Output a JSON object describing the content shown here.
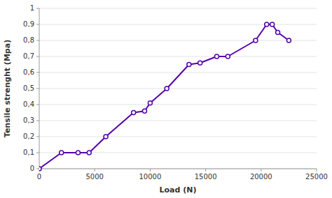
{
  "chart_data": {
    "type": "line",
    "x": [
      0,
      2000,
      3500,
      4500,
      6000,
      8500,
      9500,
      10000,
      11500,
      13500,
      14500,
      16000,
      17000,
      19500,
      20500,
      21000,
      21500,
      22500
    ],
    "values": [
      0,
      0.1,
      0.1,
      0.1,
      0.2,
      0.35,
      0.36,
      0.41,
      0.5,
      0.65,
      0.66,
      0.7,
      0.7,
      0.8,
      0.9,
      0.9,
      0.85,
      0.8
    ],
    "color": "#5500aa",
    "marker": "circle",
    "xlabel": "Load (N)",
    "ylabel": "Tensile strenght (Mpa)",
    "xlim": [
      0,
      25000
    ],
    "ylim": [
      0,
      1
    ],
    "xticks": [
      0,
      5000,
      10000,
      15000,
      20000,
      25000
    ],
    "yticks": [
      0,
      {
        "value": 0.1,
        "label": "0,1"
      },
      {
        "value": 0.2,
        "label": "0,2"
      },
      {
        "value": 0.3,
        "label": "0,3"
      },
      {
        "value": 0.4,
        "label": "0,4"
      },
      {
        "value": 0.5,
        "label": "0,5"
      },
      {
        "value": 0.6,
        "label": "0,6"
      },
      {
        "value": 0.7,
        "label": "0,7"
      },
      {
        "value": 0.8,
        "label": "0,8"
      },
      {
        "value": 0.9,
        "label": "0,9"
      },
      1
    ],
    "grid": true
  }
}
